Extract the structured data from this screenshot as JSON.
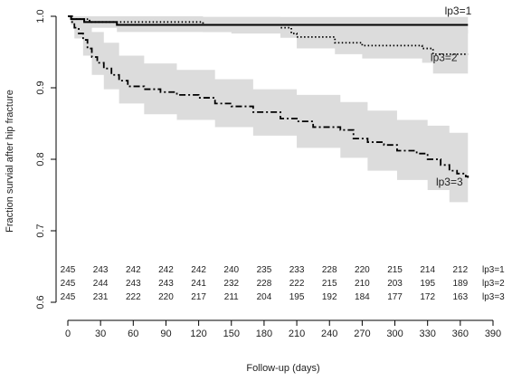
{
  "chart_data": {
    "type": "line",
    "xlabel": "Follow-up (days)",
    "ylabel": "Fraction survial after hip fracture",
    "xlim": [
      0,
      390
    ],
    "ylim": [
      0.6,
      1.0
    ],
    "x_ticks": [
      0,
      30,
      60,
      90,
      120,
      150,
      180,
      210,
      240,
      270,
      300,
      330,
      360,
      390
    ],
    "y_ticks": [
      0.6,
      0.7,
      0.8,
      0.9,
      1.0
    ],
    "y_tick_labels": [
      "0.6",
      "0.7",
      "0.8",
      "0.9",
      "1.0"
    ],
    "series": [
      {
        "name": "lp3=1",
        "style": "solid",
        "color": "#000000",
        "points": [
          [
            0,
            1.0
          ],
          [
            3,
            0.996
          ],
          [
            15,
            0.996
          ],
          [
            15,
            0.992
          ],
          [
            45,
            0.992
          ],
          [
            45,
            0.988
          ],
          [
            367,
            0.988
          ]
        ],
        "ci_lower": [
          [
            0,
            1.0
          ],
          [
            3,
            0.988
          ],
          [
            15,
            0.984
          ],
          [
            45,
            0.978
          ],
          [
            150,
            0.976
          ],
          [
            367,
            0.974
          ]
        ],
        "ci_upper": [
          [
            0,
            1.0
          ],
          [
            15,
            1.0
          ],
          [
            45,
            0.999
          ],
          [
            367,
            0.998
          ]
        ]
      },
      {
        "name": "lp3=2",
        "style": "dotted",
        "color": "#000000",
        "points": [
          [
            0,
            1.0
          ],
          [
            4,
            0.996
          ],
          [
            20,
            0.996
          ],
          [
            20,
            0.992
          ],
          [
            124,
            0.992
          ],
          [
            124,
            0.988
          ],
          [
            195,
            0.988
          ],
          [
            195,
            0.984
          ],
          [
            205,
            0.984
          ],
          [
            205,
            0.976
          ],
          [
            210,
            0.976
          ],
          [
            210,
            0.971
          ],
          [
            245,
            0.971
          ],
          [
            245,
            0.963
          ],
          [
            270,
            0.963
          ],
          [
            270,
            0.959
          ],
          [
            325,
            0.959
          ],
          [
            325,
            0.955
          ],
          [
            335,
            0.955
          ],
          [
            335,
            0.947
          ],
          [
            367,
            0.947
          ]
        ],
        "ci_lower": [
          [
            0,
            1.0
          ],
          [
            20,
            0.984
          ],
          [
            124,
            0.978
          ],
          [
            195,
            0.97
          ],
          [
            210,
            0.955
          ],
          [
            245,
            0.947
          ],
          [
            270,
            0.941
          ],
          [
            325,
            0.935
          ],
          [
            335,
            0.92
          ],
          [
            367,
            0.92
          ]
        ],
        "ci_upper": [
          [
            0,
            1.0
          ],
          [
            20,
            1.0
          ],
          [
            124,
            0.999
          ],
          [
            195,
            0.997
          ],
          [
            210,
            0.993
          ],
          [
            245,
            0.989
          ],
          [
            270,
            0.987
          ],
          [
            325,
            0.985
          ],
          [
            335,
            0.981
          ],
          [
            367,
            0.981
          ]
        ]
      },
      {
        "name": "lp3=3",
        "style": "dashdot",
        "color": "#000000",
        "points": [
          [
            0,
            1.0
          ],
          [
            3,
            0.992
          ],
          [
            6,
            0.984
          ],
          [
            10,
            0.976
          ],
          [
            14,
            0.967
          ],
          [
            18,
            0.955
          ],
          [
            22,
            0.943
          ],
          [
            27,
            0.935
          ],
          [
            33,
            0.927
          ],
          [
            40,
            0.918
          ],
          [
            47,
            0.91
          ],
          [
            55,
            0.902
          ],
          [
            70,
            0.898
          ],
          [
            85,
            0.894
          ],
          [
            100,
            0.89
          ],
          [
            120,
            0.886
          ],
          [
            135,
            0.878
          ],
          [
            150,
            0.874
          ],
          [
            170,
            0.866
          ],
          [
            195,
            0.857
          ],
          [
            210,
            0.853
          ],
          [
            225,
            0.845
          ],
          [
            250,
            0.841
          ],
          [
            262,
            0.829
          ],
          [
            275,
            0.824
          ],
          [
            290,
            0.82
          ],
          [
            302,
            0.812
          ],
          [
            320,
            0.808
          ],
          [
            330,
            0.8
          ],
          [
            342,
            0.792
          ],
          [
            350,
            0.784
          ],
          [
            357,
            0.78
          ],
          [
            365,
            0.776
          ],
          [
            367,
            0.774
          ]
        ],
        "ci_lower": [
          [
            0,
            1.0
          ],
          [
            6,
            0.969
          ],
          [
            14,
            0.945
          ],
          [
            22,
            0.918
          ],
          [
            33,
            0.898
          ],
          [
            47,
            0.878
          ],
          [
            70,
            0.863
          ],
          [
            100,
            0.855
          ],
          [
            135,
            0.845
          ],
          [
            170,
            0.833
          ],
          [
            210,
            0.816
          ],
          [
            250,
            0.802
          ],
          [
            275,
            0.784
          ],
          [
            302,
            0.771
          ],
          [
            330,
            0.757
          ],
          [
            350,
            0.74
          ],
          [
            367,
            0.728
          ]
        ],
        "ci_upper": [
          [
            0,
            1.0
          ],
          [
            6,
            0.996
          ],
          [
            14,
            0.988
          ],
          [
            22,
            0.978
          ],
          [
            33,
            0.963
          ],
          [
            47,
            0.945
          ],
          [
            70,
            0.934
          ],
          [
            100,
            0.925
          ],
          [
            135,
            0.912
          ],
          [
            170,
            0.898
          ],
          [
            210,
            0.89
          ],
          [
            250,
            0.88
          ],
          [
            275,
            0.868
          ],
          [
            302,
            0.855
          ],
          [
            330,
            0.847
          ],
          [
            350,
            0.837
          ],
          [
            367,
            0.835
          ]
        ]
      }
    ],
    "curve_labels": [
      {
        "text": "lp3=1",
        "x": 358,
        "y": 1.0
      },
      {
        "text": "lp3=2",
        "x": 345,
        "y": 0.935
      },
      {
        "text": "lp3=3",
        "x": 350,
        "y": 0.761
      }
    ],
    "risk_table": {
      "times": [
        0,
        30,
        60,
        90,
        120,
        150,
        180,
        210,
        240,
        270,
        300,
        330,
        360
      ],
      "rows": [
        {
          "label": "lp3=1",
          "values": [
            "245",
            "243",
            "242",
            "242",
            "242",
            "240",
            "235",
            "233",
            "228",
            "220",
            "215",
            "214",
            "212"
          ]
        },
        {
          "label": "lp3=2",
          "values": [
            "245",
            "244",
            "243",
            "243",
            "241",
            "232",
            "228",
            "222",
            "215",
            "210",
            "203",
            "195",
            "189"
          ]
        },
        {
          "label": "lp3=3",
          "values": [
            "245",
            "231",
            "222",
            "220",
            "217",
            "211",
            "204",
            "195",
            "192",
            "184",
            "177",
            "172",
            "163"
          ]
        }
      ]
    },
    "grid": false,
    "legend": "inline labels at curve ends",
    "ci_color": "#dcdcdc"
  }
}
